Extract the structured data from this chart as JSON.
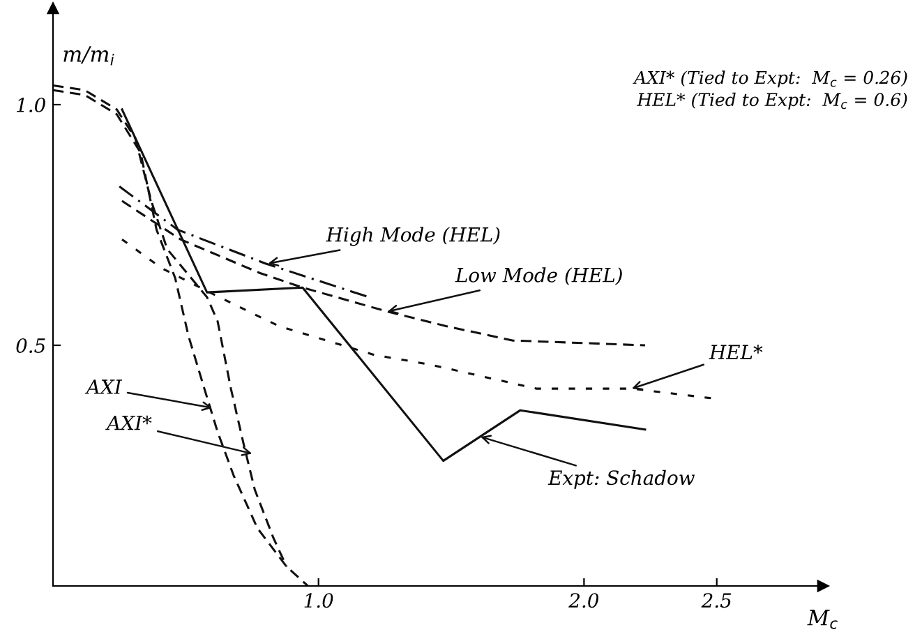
{
  "chart_data": {
    "type": "line",
    "xlabel": "M$_{c}$",
    "ylabel": "m/m$_{i}$",
    "xlim": [
      0,
      2.9
    ],
    "ylim": [
      0,
      1.2
    ],
    "xticks": [
      {
        "value": 1,
        "label": "1.0"
      },
      {
        "value": 2,
        "label": "2.0"
      },
      {
        "value": 2.5,
        "label": "2.5"
      }
    ],
    "yticks": [
      {
        "value": 0.5,
        "label": "0.5"
      },
      {
        "value": 1,
        "label": "1.0"
      }
    ],
    "marker": "none",
    "series": [
      {
        "color": "#111111",
        "line_style": "dashed",
        "x": [
          0,
          0.12,
          0.24,
          0.33,
          0.39,
          0.46,
          0.51,
          0.57,
          0.62,
          0.68,
          0.77,
          0.88,
          0.96
        ],
        "values": [
          1.03,
          1.02,
          0.98,
          0.9,
          0.74,
          0.64,
          0.52,
          0.41,
          0.32,
          0.23,
          0.12,
          0.04,
          0.0
        ]
      },
      {
        "color": "#111111",
        "line_style": "dashed",
        "x": [
          0,
          0.12,
          0.24,
          0.31,
          0.37,
          0.43,
          0.58,
          0.62,
          0.67,
          0.72,
          0.76,
          0.83,
          0.88
        ],
        "values": [
          1.04,
          1.03,
          0.99,
          0.93,
          0.8,
          0.7,
          0.6,
          0.55,
          0.41,
          0.29,
          0.2,
          0.1,
          0.04
        ]
      },
      {
        "color": "#111111",
        "line_style": "solid",
        "x": [
          0.26,
          0.58,
          0.94,
          1.47,
          1.76,
          2.23
        ],
        "values": [
          0.99,
          0.61,
          0.62,
          0.26,
          0.365,
          0.325
        ]
      },
      {
        "color": "#111111",
        "line_style": "dashdot",
        "x": [
          0.25,
          0.47,
          0.8,
          1.19
        ],
        "values": [
          0.83,
          0.74,
          0.67,
          0.6
        ]
      },
      {
        "color": "#111111",
        "line_style": "dashed",
        "x": [
          0.26,
          0.48,
          0.78,
          0.94,
          1.26,
          1.48,
          1.73,
          2.23
        ],
        "values": [
          0.8,
          0.72,
          0.65,
          0.62,
          0.57,
          0.54,
          0.51,
          0.5
        ]
      },
      {
        "color": "#111111",
        "line_style": "dotted",
        "x": [
          0.26,
          0.41,
          0.59,
          0.85,
          1.21,
          1.42,
          1.82,
          2.18,
          2.48
        ],
        "values": [
          0.72,
          0.66,
          0.61,
          0.54,
          0.48,
          0.46,
          0.41,
          0.41,
          0.39
        ]
      }
    ],
    "annotations": [
      {
        "text": "High Mode (HEL)",
        "x": 0.81,
        "y": 0.67
      },
      {
        "text": "Low Mode (HEL)",
        "x": 1.26,
        "y": 0.57
      },
      {
        "text": "HEL*",
        "x": 2.18,
        "y": 0.41
      },
      {
        "text": "Expt: Schadow",
        "x": 1.61,
        "y": 0.31
      },
      {
        "text": "AXI",
        "x": 0.6,
        "y": 0.37
      },
      {
        "text": "AXI*",
        "x": 0.75,
        "y": 0.275
      },
      "AXI* (Tied to Expt:  M$_{c}$ = 0.26)",
      "HEL* (Tied to Expt:  M$_{c}$ = 0.6)"
    ]
  }
}
